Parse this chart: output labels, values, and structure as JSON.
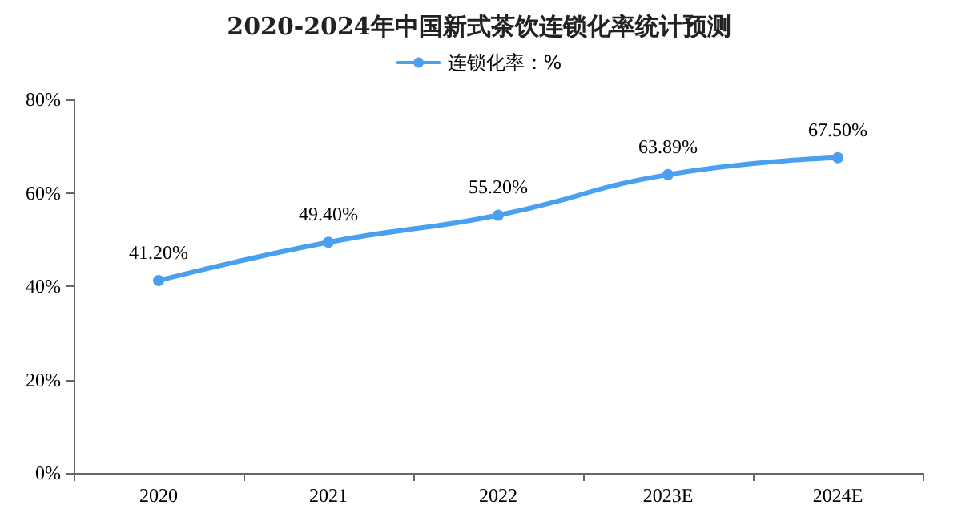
{
  "chart_data": {
    "type": "line",
    "title": "2020-2024年中国新式茶饮连锁化率统计预测",
    "categories": [
      "2020",
      "2021",
      "2022",
      "2023E",
      "2024E"
    ],
    "series": [
      {
        "name": "连锁化率：%",
        "color": "#4a9ff0",
        "values": [
          41.2,
          49.4,
          55.2,
          63.89,
          67.5
        ],
        "value_labels": [
          "41.20%",
          "49.40%",
          "55.20%",
          "63.89%",
          "67.50%"
        ]
      }
    ],
    "ylim": [
      0,
      80
    ],
    "yticks": [
      {
        "value": 0,
        "label": "0%"
      },
      {
        "value": 20,
        "label": "20%"
      },
      {
        "value": 40,
        "label": "40%"
      },
      {
        "value": 60,
        "label": "60%"
      },
      {
        "value": 80,
        "label": "80%"
      }
    ],
    "grid": false,
    "legend": "top",
    "marker": "circle",
    "line_style": "solid"
  }
}
